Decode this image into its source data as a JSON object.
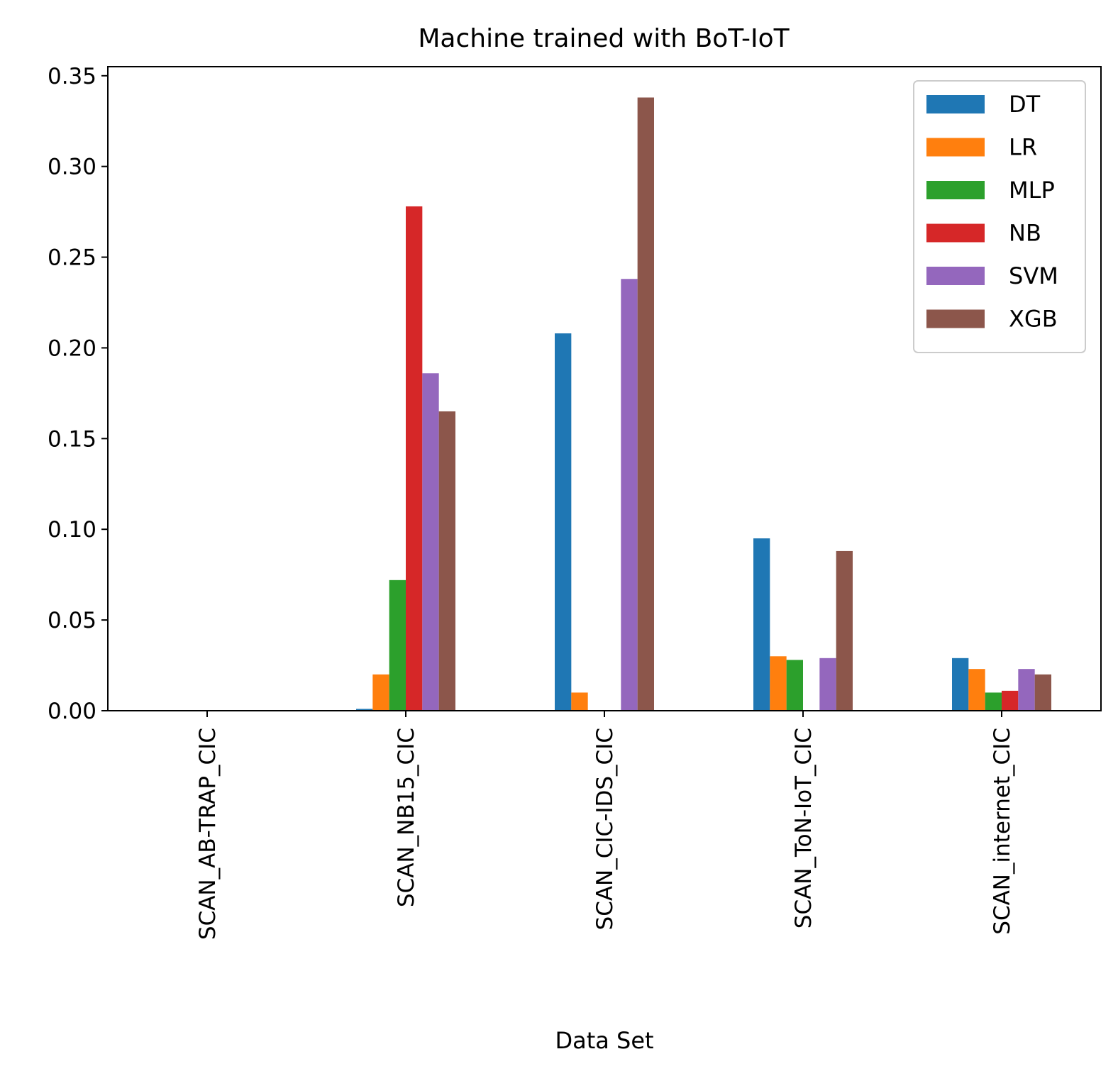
{
  "chart_data": {
    "type": "bar",
    "title": "Machine trained with BoT-IoT",
    "xlabel": "Data Set",
    "ylabel": "",
    "ylim": [
      0,
      0.355
    ],
    "yticks": [
      "0.00",
      "0.05",
      "0.10",
      "0.15",
      "0.20",
      "0.25",
      "0.30",
      "0.35"
    ],
    "categories": [
      "SCAN_AB-TRAP_CIC",
      "SCAN_NB15_CIC",
      "SCAN_CIC-IDS_CIC",
      "SCAN_ToN-IoT_CIC",
      "SCAN_internet_CIC"
    ],
    "legend_position": "top-right",
    "grid": false,
    "series": [
      {
        "name": "DT",
        "color": "#1f77b4",
        "values": [
          0,
          0.001,
          0.208,
          0.095,
          0.029
        ]
      },
      {
        "name": "LR",
        "color": "#ff7f0e",
        "values": [
          0,
          0.02,
          0.01,
          0.03,
          0.023
        ]
      },
      {
        "name": "MLP",
        "color": "#2ca02c",
        "values": [
          0,
          0.072,
          0,
          0.028,
          0.01
        ]
      },
      {
        "name": "NB",
        "color": "#d62728",
        "values": [
          0,
          0.278,
          0,
          0,
          0.011
        ]
      },
      {
        "name": "SVM",
        "color": "#9467bd",
        "values": [
          0,
          0.186,
          0.238,
          0.029,
          0.023
        ]
      },
      {
        "name": "XGB",
        "color": "#8c564b",
        "values": [
          0,
          0.165,
          0.338,
          0.088,
          0.02
        ]
      }
    ]
  }
}
